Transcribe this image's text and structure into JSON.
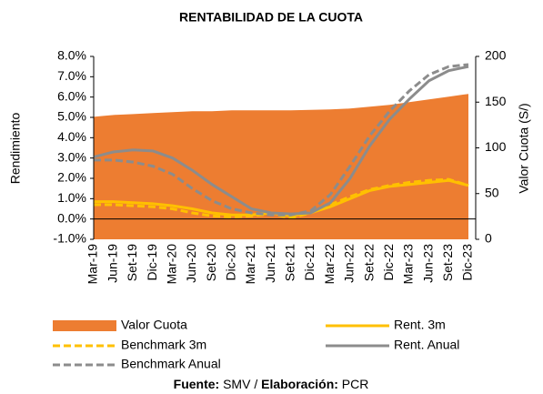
{
  "chart_data": {
    "type": "line",
    "title": "RENTABILIDAD DE LA CUOTA",
    "y_label": "Rendimiento",
    "y2_label": "Valor Cuota (S/)",
    "categories": [
      "Mar-19",
      "Jun-19",
      "Set-19",
      "Dic-19",
      "Mar-20",
      "Jun-20",
      "Set-20",
      "Dic-20",
      "Mar-21",
      "Jun-21",
      "Set-21",
      "Dic-21",
      "Mar-22",
      "Jun-22",
      "Set-22",
      "Dic-22",
      "Mar-23",
      "Jun-23",
      "Set-23",
      "Dic-23"
    ],
    "ylim": [
      -1,
      8
    ],
    "yticks": [
      {
        "value": -1,
        "label": "-1.0%"
      },
      {
        "value": 0,
        "label": "0.0%"
      },
      {
        "value": 1,
        "label": "1.0%"
      },
      {
        "value": 2,
        "label": "2.0%"
      },
      {
        "value": 3,
        "label": "3.0%"
      },
      {
        "value": 4,
        "label": "4.0%"
      },
      {
        "value": 5,
        "label": "5.0%"
      },
      {
        "value": 6,
        "label": "6.0%"
      },
      {
        "value": 7,
        "label": "7.0%"
      },
      {
        "value": 8,
        "label": "8.0%"
      }
    ],
    "y2lim": [
      0,
      200
    ],
    "y2ticks": [
      0,
      50,
      100,
      150,
      200
    ],
    "series": [
      {
        "name": "Valor Cuota",
        "kind": "area",
        "axis": "y2",
        "color": "#ed7d31",
        "values": [
          134,
          136,
          137,
          138,
          139,
          140,
          140,
          141,
          141,
          141,
          141,
          141.5,
          142,
          143,
          145,
          147,
          150,
          153,
          156,
          159
        ]
      },
      {
        "name": "Rent. 3m",
        "kind": "line",
        "color": "#ffc000",
        "dashed": false,
        "values": [
          0.85,
          0.85,
          0.8,
          0.75,
          0.65,
          0.5,
          0.3,
          0.2,
          0.2,
          0.3,
          0.15,
          0.3,
          0.6,
          1.0,
          1.4,
          1.6,
          1.7,
          1.8,
          1.9,
          1.65
        ]
      },
      {
        "name": "Benchmark 3m",
        "kind": "line",
        "color": "#ffc000",
        "dashed": true,
        "values": [
          0.7,
          0.7,
          0.65,
          0.6,
          0.5,
          0.3,
          0.15,
          0.1,
          0.15,
          0.25,
          0.05,
          0.3,
          0.7,
          1.1,
          1.45,
          1.65,
          1.8,
          1.9,
          1.95,
          1.65
        ]
      },
      {
        "name": "Rent. Anual",
        "kind": "line",
        "color": "#8c8c8c",
        "dashed": false,
        "values": [
          3.05,
          3.3,
          3.4,
          3.35,
          3.0,
          2.4,
          1.7,
          1.1,
          0.5,
          0.3,
          0.25,
          0.3,
          0.8,
          2.0,
          3.6,
          4.9,
          5.9,
          6.8,
          7.3,
          7.5
        ]
      },
      {
        "name": "Benchmark Anual",
        "kind": "line",
        "color": "#8c8c8c",
        "dashed": true,
        "values": [
          2.9,
          2.9,
          2.8,
          2.6,
          2.2,
          1.5,
          0.9,
          0.5,
          0.3,
          0.2,
          0.2,
          0.4,
          1.2,
          2.6,
          4.1,
          5.3,
          6.3,
          7.1,
          7.5,
          7.6
        ]
      }
    ],
    "source": [
      "Fuente:",
      "SMV /",
      "Elaboración:",
      "PCR"
    ]
  }
}
